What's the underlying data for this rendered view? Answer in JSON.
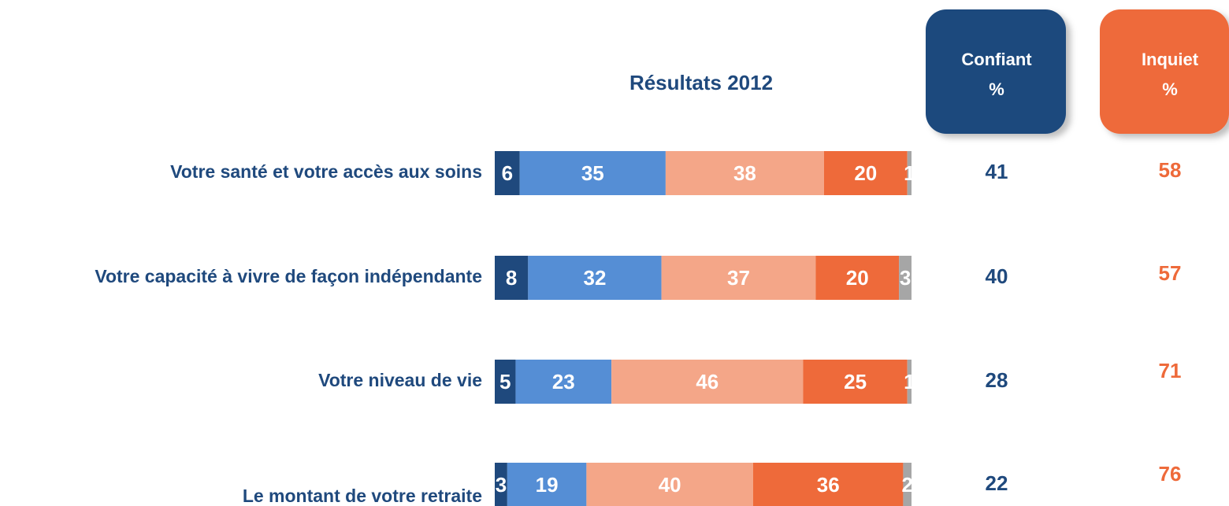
{
  "chart_data": {
    "type": "stacked-bar",
    "title": "Résultats 2012",
    "categories": [
      "Votre santé et votre accès aux soins",
      "Votre capacité à vivre de façon indépendante",
      "Votre niveau de vie",
      "Le montant de votre retraite"
    ],
    "series": [
      {
        "color": "#1f497d",
        "values": [
          6,
          8,
          5,
          3
        ]
      },
      {
        "color": "#558ed5",
        "values": [
          35,
          32,
          23,
          19
        ]
      },
      {
        "color": "#f4a688",
        "values": [
          38,
          37,
          46,
          40
        ]
      },
      {
        "color": "#ee6a3a",
        "values": [
          20,
          20,
          25,
          36
        ]
      },
      {
        "color": "#a6a6a6",
        "values": [
          1,
          3,
          1,
          2
        ]
      }
    ],
    "xlim": [
      0,
      100
    ],
    "summaries": [
      {
        "label": "Confiant",
        "unit": "%",
        "color": "#1f497d",
        "values": [
          41,
          40,
          28,
          22
        ]
      },
      {
        "label": "Inquiet",
        "unit": "%",
        "color": "#ee6a3a",
        "values": [
          58,
          57,
          71,
          76
        ]
      }
    ]
  }
}
